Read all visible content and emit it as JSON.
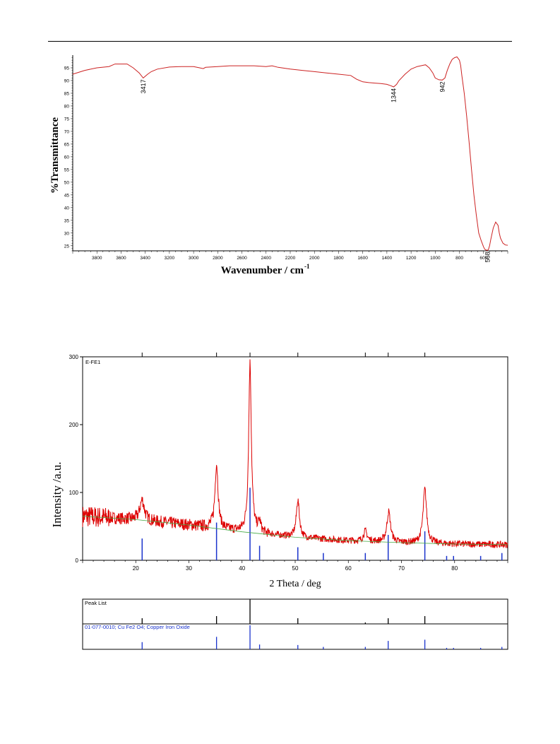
{
  "chart_data": [
    {
      "type": "line",
      "title": "",
      "xlabel_main": "Wavenumber  / cm",
      "xlabel_sup": "-1",
      "ylabel": "%Transmittance",
      "xlim": [
        4000,
        400
      ],
      "ylim": [
        23,
        100
      ],
      "x_ticks": [
        3800,
        3600,
        3400,
        3200,
        3000,
        2800,
        2600,
        2400,
        2200,
        2000,
        1800,
        1600,
        1400,
        1200,
        1000,
        800,
        600
      ],
      "y_ticks": [
        25,
        30,
        35,
        40,
        45,
        50,
        55,
        60,
        65,
        70,
        75,
        80,
        85,
        90,
        95
      ],
      "line_color": "#cc2222",
      "grid": false,
      "series": [
        {
          "x": [
            4000,
            3900,
            3800,
            3700,
            3650,
            3600,
            3550,
            3500,
            3450,
            3417,
            3380,
            3350,
            3300,
            3200,
            3100,
            3000,
            2950,
            2920,
            2900,
            2800,
            2700,
            2600,
            2500,
            2400,
            2350,
            2300,
            2200,
            2100,
            2000,
            1900,
            1800,
            1700,
            1650,
            1600,
            1550,
            1500,
            1450,
            1400,
            1370,
            1344,
            1320,
            1300,
            1250,
            1200,
            1150,
            1100,
            1080,
            1050,
            1020,
            1000,
            970,
            942,
            920,
            900,
            880,
            860,
            840,
            820,
            800,
            790,
            780,
            760,
            740,
            720,
            700,
            680,
            660,
            640,
            620,
            600,
            590,
            580,
            568,
            560,
            550,
            540,
            520,
            500,
            480,
            470,
            460,
            440,
            420,
            400
          ],
          "y": [
            92.5,
            94,
            95,
            95.5,
            96.5,
            96.5,
            96.5,
            95,
            93,
            91,
            92.5,
            93.5,
            94.5,
            95.3,
            95.5,
            95.5,
            95,
            94.7,
            95.2,
            95.5,
            95.8,
            95.8,
            95.8,
            95.5,
            95.8,
            95.2,
            94.5,
            94,
            93.5,
            93,
            92.5,
            92,
            90.5,
            89.5,
            89.2,
            89,
            88.8,
            88.5,
            88,
            87.5,
            88.5,
            90,
            92.5,
            94.5,
            95.5,
            96,
            96.2,
            95,
            93,
            91,
            90.3,
            90.2,
            91,
            94,
            96.5,
            98.3,
            99,
            99.3,
            98,
            96,
            92,
            85,
            76,
            66,
            55,
            45,
            37,
            30,
            27,
            24.5,
            23.6,
            23.3,
            23.2,
            23.5,
            25,
            27.5,
            32,
            34.3,
            33,
            30,
            28,
            26,
            25.3,
            25.2
          ]
        }
      ],
      "peak_labels": [
        {
          "x": 3417,
          "y": 91,
          "text": "3417"
        },
        {
          "x": 1344,
          "y": 87.5,
          "text": "1344"
        },
        {
          "x": 942,
          "y": 90.2,
          "text": "942"
        },
        {
          "x": 568,
          "y": 23.2,
          "text": "568"
        }
      ]
    },
    {
      "type": "line",
      "title": "E-FE1",
      "xlabel": "2 Theta / deg",
      "ylabel": "Intensity /a.u.",
      "xlim": [
        10,
        90
      ],
      "ylim": [
        0,
        300
      ],
      "x_ticks": [
        20,
        30,
        40,
        50,
        60,
        70,
        80
      ],
      "y_ticks": [
        0,
        100,
        200,
        300
      ],
      "line_color": "#dd0000",
      "background_color": "#44aa44",
      "reference_color": "#1a33cc",
      "grid": false,
      "baseline": {
        "x": [
          10,
          20,
          30,
          40,
          50,
          60,
          70,
          80,
          90
        ],
        "y": [
          65,
          60,
          52,
          42,
          34,
          29,
          26,
          24,
          23
        ]
      },
      "peaks": [
        {
          "x": 21.2,
          "height": 30,
          "width": 0.5
        },
        {
          "x": 35.2,
          "height": 95,
          "width": 0.35
        },
        {
          "x": 41.5,
          "height": 250,
          "width": 0.3
        },
        {
          "x": 43.3,
          "height": 15,
          "width": 0.3
        },
        {
          "x": 50.5,
          "height": 55,
          "width": 0.35
        },
        {
          "x": 63.2,
          "height": 15,
          "width": 0.4
        },
        {
          "x": 67.6,
          "height": 45,
          "width": 0.4
        },
        {
          "x": 74.4,
          "height": 80,
          "width": 0.4
        }
      ],
      "reference_lines": [
        {
          "x": 21.2,
          "intensity": 30
        },
        {
          "x": 35.2,
          "intensity": 52
        },
        {
          "x": 41.5,
          "intensity": 100
        },
        {
          "x": 43.3,
          "intensity": 20
        },
        {
          "x": 50.5,
          "intensity": 18
        },
        {
          "x": 55.3,
          "intensity": 10
        },
        {
          "x": 63.2,
          "intensity": 10
        },
        {
          "x": 67.5,
          "intensity": 35
        },
        {
          "x": 74.4,
          "intensity": 40
        },
        {
          "x": 78.5,
          "intensity": 6
        },
        {
          "x": 79.8,
          "intensity": 6
        },
        {
          "x": 84.9,
          "intensity": 6
        },
        {
          "x": 88.9,
          "intensity": 10
        }
      ],
      "peak_list_positions": [
        21.2,
        35.2,
        41.5,
        50.5,
        63.2,
        67.5,
        74.4
      ],
      "peak_list_title": "Peak List",
      "reference_title": "01-077-0010; Cu Fe2 O4; Copper Iron Oxide"
    }
  ]
}
